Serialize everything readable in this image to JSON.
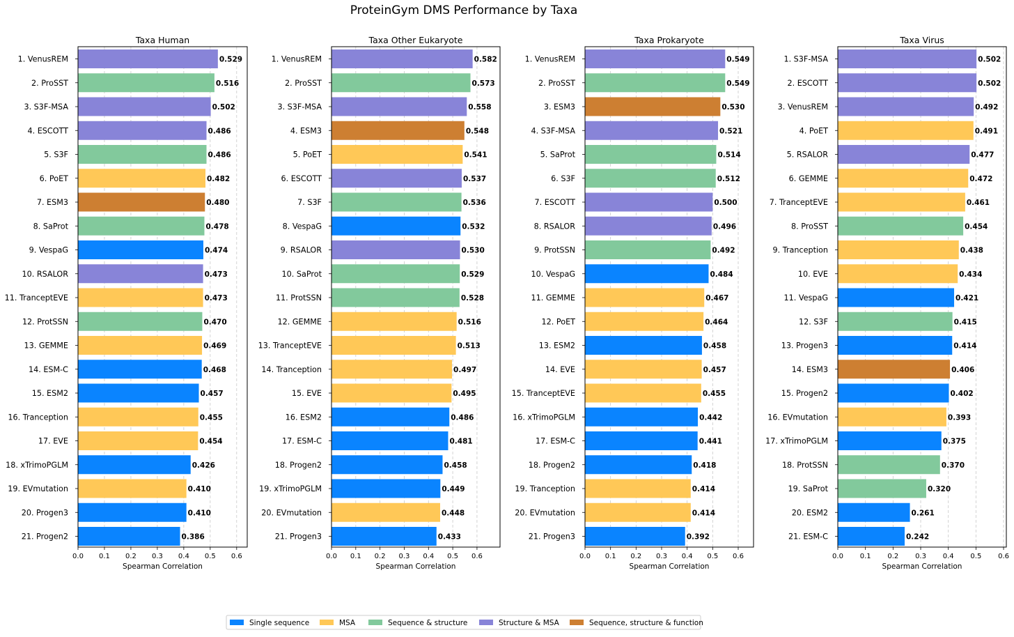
{
  "title": "ProteinGym DMS Performance by Taxa",
  "colors": {
    "Single sequence": "#0a84ff",
    "MSA": "#ffc857",
    "Sequence & structure": "#82c99c",
    "Structure & MSA": "#8884d8",
    "Sequence, structure & function": "#cd7f32"
  },
  "legend": {
    "placement": "bottom-center",
    "items": [
      "Single sequence",
      "MSA",
      "Sequence & structure",
      "Structure & MSA",
      "Sequence, structure & function"
    ]
  },
  "chart_data": [
    {
      "type": "bar",
      "orientation": "horizontal",
      "title": "Taxa Human",
      "xlabel": "Spearman Correlation",
      "xlim": [
        0,
        0.64
      ],
      "xticks": [
        "0.0",
        "0.1",
        "0.2",
        "0.3",
        "0.4",
        "0.5",
        "0.6"
      ],
      "grid": "x-dashed",
      "categories": [
        "1. VenusREM",
        "2. ProSST",
        "3. S3F-MSA",
        "4. ESCOTT",
        "5. S3F",
        "6. PoET",
        "7. ESM3",
        "8. SaProt",
        "9. VespaG",
        "10. RSALOR",
        "11. TranceptEVE",
        "12. ProtSSN",
        "13. GEMME",
        "14. ESM-C",
        "15. ESM2",
        "16. Tranception",
        "17. EVE",
        "18. xTrimoPGLM",
        "19. EVmutation",
        "20. Progen3",
        "21. Progen2"
      ],
      "values": [
        0.529,
        0.516,
        0.502,
        0.486,
        0.486,
        0.482,
        0.48,
        0.478,
        0.474,
        0.473,
        0.473,
        0.47,
        0.469,
        0.468,
        0.457,
        0.455,
        0.454,
        0.426,
        0.41,
        0.41,
        0.386
      ],
      "value_labels": [
        "0.529",
        "0.516",
        "0.502",
        "0.486",
        "0.486",
        "0.482",
        "0.480",
        "0.478",
        "0.474",
        "0.473",
        "0.473",
        "0.470",
        "0.469",
        "0.468",
        "0.457",
        "0.455",
        "0.454",
        "0.426",
        "0.410",
        "0.410",
        "0.386"
      ],
      "groups": [
        "Structure & MSA",
        "Sequence & structure",
        "Structure & MSA",
        "Structure & MSA",
        "Sequence & structure",
        "MSA",
        "Sequence, structure & function",
        "Sequence & structure",
        "Single sequence",
        "Structure & MSA",
        "MSA",
        "Sequence & structure",
        "MSA",
        "Single sequence",
        "Single sequence",
        "MSA",
        "MSA",
        "Single sequence",
        "MSA",
        "Single sequence",
        "Single sequence"
      ]
    },
    {
      "type": "bar",
      "orientation": "horizontal",
      "title": "Taxa Other Eukaryote",
      "xlabel": "Spearman Correlation",
      "xlim": [
        0,
        0.695
      ],
      "xticks": [
        "0.0",
        "0.1",
        "0.2",
        "0.3",
        "0.4",
        "0.5",
        "0.6"
      ],
      "grid": "x-dashed",
      "categories": [
        "1. VenusREM",
        "2. ProSST",
        "3. S3F-MSA",
        "4. ESM3",
        "5. PoET",
        "6. ESCOTT",
        "7. S3F",
        "8. VespaG",
        "9. RSALOR",
        "10. SaProt",
        "11. ProtSSN",
        "12. GEMME",
        "13. TranceptEVE",
        "14. Tranception",
        "15. EVE",
        "16. ESM2",
        "17. ESM-C",
        "18. Progen2",
        "19. xTrimoPGLM",
        "20. EVmutation",
        "21. Progen3"
      ],
      "values": [
        0.582,
        0.573,
        0.558,
        0.548,
        0.541,
        0.537,
        0.536,
        0.532,
        0.53,
        0.529,
        0.528,
        0.516,
        0.513,
        0.497,
        0.495,
        0.486,
        0.481,
        0.458,
        0.449,
        0.448,
        0.433
      ],
      "value_labels": [
        "0.582",
        "0.573",
        "0.558",
        "0.548",
        "0.541",
        "0.537",
        "0.536",
        "0.532",
        "0.530",
        "0.529",
        "0.528",
        "0.516",
        "0.513",
        "0.497",
        "0.495",
        "0.486",
        "0.481",
        "0.458",
        "0.449",
        "0.448",
        "0.433"
      ],
      "groups": [
        "Structure & MSA",
        "Sequence & structure",
        "Structure & MSA",
        "Sequence, structure & function",
        "MSA",
        "Structure & MSA",
        "Sequence & structure",
        "Single sequence",
        "Structure & MSA",
        "Sequence & structure",
        "Sequence & structure",
        "MSA",
        "MSA",
        "MSA",
        "MSA",
        "Single sequence",
        "Single sequence",
        "Single sequence",
        "Single sequence",
        "MSA",
        "Single sequence"
      ]
    },
    {
      "type": "bar",
      "orientation": "horizontal",
      "title": "Taxa Prokaryote",
      "xlabel": "Spearman Correlation",
      "xlim": [
        0,
        0.66
      ],
      "xticks": [
        "0.0",
        "0.1",
        "0.2",
        "0.3",
        "0.4",
        "0.5",
        "0.6"
      ],
      "grid": "x-dashed",
      "categories": [
        "1. VenusREM",
        "2. ProSST",
        "3. ESM3",
        "4. S3F-MSA",
        "5. SaProt",
        "6. S3F",
        "7. ESCOTT",
        "8. RSALOR",
        "9. ProtSSN",
        "10. VespaG",
        "11. GEMME",
        "12. PoET",
        "13. ESM2",
        "14. EVE",
        "15. TranceptEVE",
        "16. xTrimoPGLM",
        "17. ESM-C",
        "18. Progen2",
        "19. Tranception",
        "20. EVmutation",
        "21. Progen3"
      ],
      "values": [
        0.549,
        0.549,
        0.53,
        0.521,
        0.514,
        0.512,
        0.5,
        0.496,
        0.492,
        0.484,
        0.467,
        0.464,
        0.458,
        0.457,
        0.455,
        0.442,
        0.441,
        0.418,
        0.414,
        0.414,
        0.392
      ],
      "value_labels": [
        "0.549",
        "0.549",
        "0.530",
        "0.521",
        "0.514",
        "0.512",
        "0.500",
        "0.496",
        "0.492",
        "0.484",
        "0.467",
        "0.464",
        "0.458",
        "0.457",
        "0.455",
        "0.442",
        "0.441",
        "0.418",
        "0.414",
        "0.414",
        "0.392"
      ],
      "groups": [
        "Structure & MSA",
        "Sequence & structure",
        "Sequence, structure & function",
        "Structure & MSA",
        "Sequence & structure",
        "Sequence & structure",
        "Structure & MSA",
        "Structure & MSA",
        "Sequence & structure",
        "Single sequence",
        "MSA",
        "MSA",
        "Single sequence",
        "MSA",
        "MSA",
        "Single sequence",
        "Single sequence",
        "Single sequence",
        "MSA",
        "MSA",
        "Single sequence"
      ]
    },
    {
      "type": "bar",
      "orientation": "horizontal",
      "title": "Taxa Virus",
      "xlabel": "Spearman Correlation",
      "xlim": [
        0,
        0.61
      ],
      "xticks": [
        "0.0",
        "0.1",
        "0.2",
        "0.3",
        "0.4",
        "0.5",
        "0.6"
      ],
      "grid": "x-dashed",
      "categories": [
        "1. S3F-MSA",
        "2. ESCOTT",
        "3. VenusREM",
        "4. PoET",
        "5. RSALOR",
        "6. GEMME",
        "7. TranceptEVE",
        "8. ProSST",
        "9. Tranception",
        "10. EVE",
        "11. VespaG",
        "12. S3F",
        "13. Progen3",
        "14. ESM3",
        "15. Progen2",
        "16. EVmutation",
        "17. xTrimoPGLM",
        "18. ProtSSN",
        "19. SaProt",
        "20. ESM2",
        "21. ESM-C"
      ],
      "values": [
        0.502,
        0.502,
        0.492,
        0.491,
        0.477,
        0.472,
        0.461,
        0.454,
        0.438,
        0.434,
        0.421,
        0.415,
        0.414,
        0.406,
        0.402,
        0.393,
        0.375,
        0.37,
        0.32,
        0.261,
        0.242
      ],
      "value_labels": [
        "0.502",
        "0.502",
        "0.492",
        "0.491",
        "0.477",
        "0.472",
        "0.461",
        "0.454",
        "0.438",
        "0.434",
        "0.421",
        "0.415",
        "0.414",
        "0.406",
        "0.402",
        "0.393",
        "0.375",
        "0.370",
        "0.320",
        "0.261",
        "0.242"
      ],
      "groups": [
        "Structure & MSA",
        "Structure & MSA",
        "Structure & MSA",
        "MSA",
        "Structure & MSA",
        "MSA",
        "MSA",
        "Sequence & structure",
        "MSA",
        "MSA",
        "Single sequence",
        "Sequence & structure",
        "Single sequence",
        "Sequence, structure & function",
        "Single sequence",
        "MSA",
        "Single sequence",
        "Sequence & structure",
        "Sequence & structure",
        "Single sequence",
        "Single sequence"
      ]
    }
  ]
}
